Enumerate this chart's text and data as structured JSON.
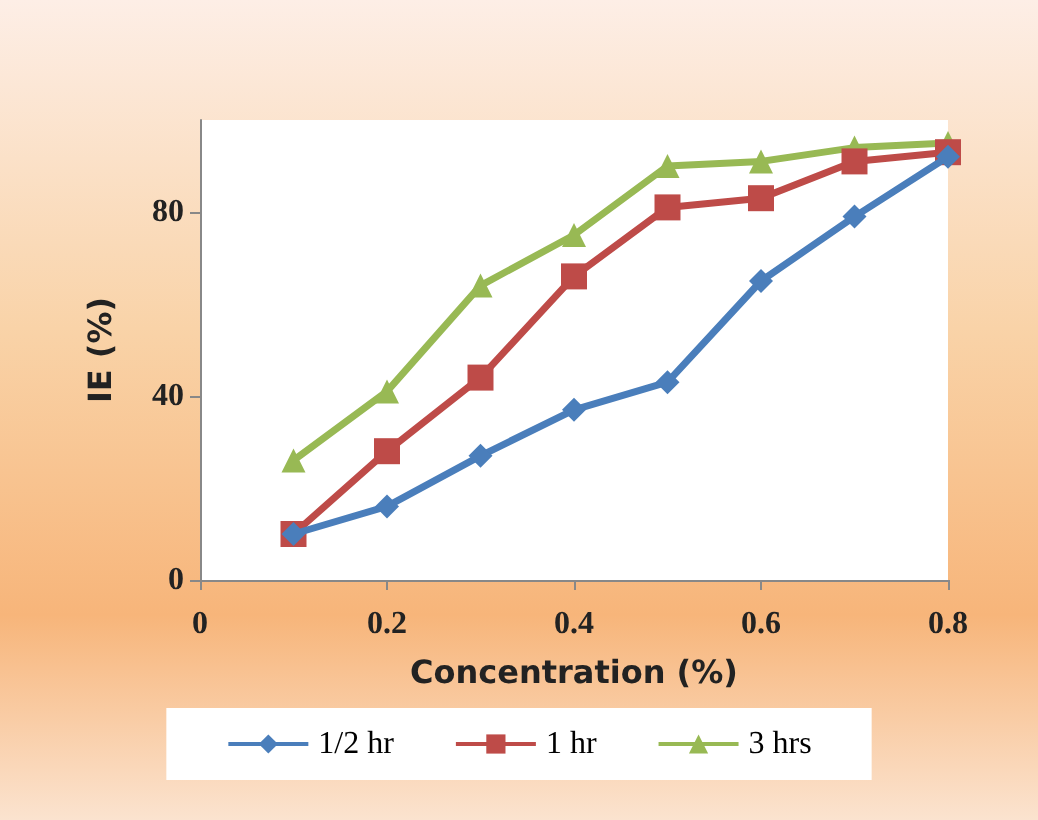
{
  "chart_data": {
    "type": "line",
    "xlabel": "Concentration (%)",
    "ylabel": "IE (%)",
    "x": [
      0.1,
      0.2,
      0.3,
      0.4,
      0.5,
      0.6,
      0.7,
      0.8
    ],
    "xlim": [
      0,
      0.8
    ],
    "xticks": [
      0,
      0.2,
      0.4,
      0.6,
      0.8
    ],
    "ylim": [
      0,
      100
    ],
    "yticks": [
      0,
      40,
      80
    ],
    "grid": false,
    "legend": "bottom",
    "line_style": "solid",
    "series": [
      {
        "name": "1/2 hr",
        "color": "#4a7ebb",
        "marker": "diamond",
        "values": [
          10,
          16,
          27,
          37,
          43,
          65,
          79,
          92
        ]
      },
      {
        "name": "1 hr",
        "color": "#be4b48",
        "marker": "square",
        "values": [
          10,
          28,
          44,
          66,
          81,
          83,
          91,
          93
        ]
      },
      {
        "name": "3 hrs",
        "color": "#98b954",
        "marker": "triangle",
        "values": [
          26,
          41,
          64,
          75,
          90,
          91,
          94,
          95
        ]
      }
    ]
  }
}
